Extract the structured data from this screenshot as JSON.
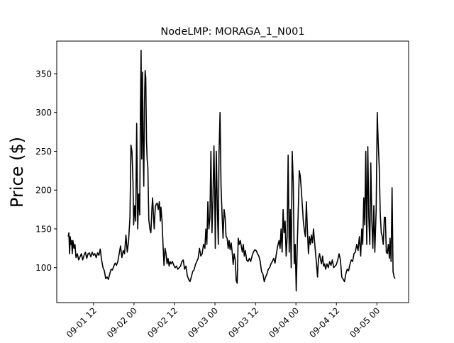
{
  "chart_data": {
    "type": "line",
    "title": "NodeLMP: MORAGA_1_N001",
    "xlabel": "",
    "ylabel": "Price ($)",
    "x_ticks": [
      {
        "label": "09-01 12",
        "t": 12
      },
      {
        "label": "09-02 00",
        "t": 24
      },
      {
        "label": "09-02 12",
        "t": 36
      },
      {
        "label": "09-03 00",
        "t": 48
      },
      {
        "label": "09-03 12",
        "t": 60
      },
      {
        "label": "09-04 00",
        "t": 72
      },
      {
        "label": "09-04 12",
        "t": 84
      },
      {
        "label": "09-05 00",
        "t": 96
      }
    ],
    "y_ticks": [
      100,
      150,
      200,
      250,
      300,
      350
    ],
    "xlim": [
      1.1,
      105.4
    ],
    "ylim": [
      55,
      392
    ],
    "grid": false,
    "line_color": "#000000",
    "series": [
      {
        "points": [
          [
            4.5,
            140
          ],
          [
            4.7,
            145
          ],
          [
            4.9,
            118
          ],
          [
            5.1,
            140
          ],
          [
            5.3,
            130
          ],
          [
            5.5,
            135
          ],
          [
            5.7,
            118
          ],
          [
            5.9,
            135
          ],
          [
            6.2,
            125
          ],
          [
            6.5,
            130
          ],
          [
            6.8,
            113
          ],
          [
            7.2,
            118
          ],
          [
            7.6,
            110
          ],
          [
            8.0,
            114
          ],
          [
            8.4,
            118
          ],
          [
            8.8,
            110
          ],
          [
            9.2,
            116
          ],
          [
            9.6,
            120
          ],
          [
            10.0,
            112
          ],
          [
            10.4,
            118
          ],
          [
            10.8,
            119
          ],
          [
            11.2,
            114
          ],
          [
            11.6,
            120
          ],
          [
            12.0,
            116
          ],
          [
            12.4,
            118
          ],
          [
            12.8,
            113
          ],
          [
            13.2,
            119
          ],
          [
            13.6,
            116
          ],
          [
            14.0,
            124
          ],
          [
            14.4,
            110
          ],
          [
            14.8,
            100
          ],
          [
            15.2,
            96
          ],
          [
            15.6,
            86
          ],
          [
            16.0,
            88
          ],
          [
            16.4,
            85
          ],
          [
            16.8,
            92
          ],
          [
            17.2,
            98
          ],
          [
            17.6,
            97
          ],
          [
            18.0,
            102
          ],
          [
            18.4,
            106
          ],
          [
            18.8,
            103
          ],
          [
            19.2,
            108
          ],
          [
            19.6,
            118
          ],
          [
            20.0,
            128
          ],
          [
            20.4,
            113
          ],
          [
            20.8,
            122
          ],
          [
            21.2,
            118
          ],
          [
            21.6,
            142
          ],
          [
            22.0,
            120
          ],
          [
            22.4,
            135
          ],
          [
            22.8,
            165
          ],
          [
            23.1,
            258
          ],
          [
            23.4,
            250
          ],
          [
            23.7,
            210
          ],
          [
            23.9,
            155
          ],
          [
            24.2,
            180
          ],
          [
            24.5,
            160
          ],
          [
            24.8,
            286
          ],
          [
            25.1,
            150
          ],
          [
            25.4,
            195
          ],
          [
            25.7,
            168
          ],
          [
            25.9,
            300
          ],
          [
            26.1,
            380
          ],
          [
            26.3,
            240
          ],
          [
            26.5,
            352
          ],
          [
            26.7,
            260
          ],
          [
            26.9,
            205
          ],
          [
            27.1,
            310
          ],
          [
            27.3,
            354
          ],
          [
            27.5,
            345
          ],
          [
            27.7,
            265
          ],
          [
            27.9,
            240
          ],
          [
            28.1,
            230
          ],
          [
            28.4,
            162
          ],
          [
            28.7,
            150
          ],
          [
            29.0,
            145
          ],
          [
            29.3,
            175
          ],
          [
            29.5,
            190
          ],
          [
            29.8,
            165
          ],
          [
            30.0,
            150
          ],
          [
            30.3,
            178
          ],
          [
            30.6,
            182
          ],
          [
            30.9,
            183
          ],
          [
            31.2,
            175
          ],
          [
            31.5,
            185
          ],
          [
            31.8,
            160
          ],
          [
            32.0,
            178
          ],
          [
            32.3,
            160
          ],
          [
            32.6,
            130
          ],
          [
            32.9,
            103
          ],
          [
            33.2,
            125
          ],
          [
            33.5,
            118
          ],
          [
            33.8,
            105
          ],
          [
            34.1,
            112
          ],
          [
            34.4,
            102
          ],
          [
            34.7,
            108
          ],
          [
            35.0,
            105
          ],
          [
            35.4,
            108
          ],
          [
            35.8,
            103
          ],
          [
            36.2,
            100
          ],
          [
            36.6,
            102
          ],
          [
            37.0,
            98
          ],
          [
            37.4,
            100
          ],
          [
            37.8,
            102
          ],
          [
            38.2,
            108
          ],
          [
            38.6,
            110
          ],
          [
            39.0,
            98
          ],
          [
            39.4,
            102
          ],
          [
            39.8,
            90
          ],
          [
            40.2,
            85
          ],
          [
            40.6,
            82
          ],
          [
            41.0,
            88
          ],
          [
            41.4,
            95
          ],
          [
            41.8,
            97
          ],
          [
            42.2,
            104
          ],
          [
            42.6,
            108
          ],
          [
            43.0,
            112
          ],
          [
            43.4,
            125
          ],
          [
            43.8,
            115
          ],
          [
            44.2,
            118
          ],
          [
            44.6,
            130
          ],
          [
            45.0,
            125
          ],
          [
            45.3,
            150
          ],
          [
            45.6,
            130
          ],
          [
            45.9,
            185
          ],
          [
            46.2,
            150
          ],
          [
            46.5,
            165
          ],
          [
            46.8,
            250
          ],
          [
            47.1,
            145
          ],
          [
            47.4,
            190
          ],
          [
            47.7,
            257
          ],
          [
            47.9,
            200
          ],
          [
            48.1,
            125
          ],
          [
            48.4,
            250
          ],
          [
            48.7,
            175
          ],
          [
            49.0,
            130
          ],
          [
            49.2,
            245
          ],
          [
            49.5,
            300
          ],
          [
            49.8,
            205
          ],
          [
            50.1,
            170
          ],
          [
            50.4,
            138
          ],
          [
            50.7,
            175
          ],
          [
            51.0,
            165
          ],
          [
            51.3,
            140
          ],
          [
            51.6,
            138
          ],
          [
            51.9,
            125
          ],
          [
            52.2,
            135
          ],
          [
            52.5,
            123
          ],
          [
            52.8,
            132
          ],
          [
            53.1,
            120
          ],
          [
            53.4,
            104
          ],
          [
            53.7,
            118
          ],
          [
            54.0,
            110
          ],
          [
            54.3,
            83
          ],
          [
            54.6,
            80
          ],
          [
            54.9,
            138
          ],
          [
            55.2,
            130
          ],
          [
            55.5,
            135
          ],
          [
            55.8,
            128
          ],
          [
            56.1,
            120
          ],
          [
            56.4,
            130
          ],
          [
            56.7,
            115
          ],
          [
            57.0,
            122
          ],
          [
            57.4,
            110
          ],
          [
            57.8,
            108
          ],
          [
            58.2,
            112
          ],
          [
            58.6,
            108
          ],
          [
            59.0,
            115
          ],
          [
            59.4,
            120
          ],
          [
            59.8,
            123
          ],
          [
            60.2,
            122
          ],
          [
            60.6,
            118
          ],
          [
            61.0,
            115
          ],
          [
            61.4,
            108
          ],
          [
            61.8,
            95
          ],
          [
            62.2,
            92
          ],
          [
            62.6,
            82
          ],
          [
            63.0,
            88
          ],
          [
            63.4,
            92
          ],
          [
            63.8,
            98
          ],
          [
            64.2,
            100
          ],
          [
            64.6,
            105
          ],
          [
            65.0,
            108
          ],
          [
            65.4,
            112
          ],
          [
            65.8,
            106
          ],
          [
            66.2,
            118
          ],
          [
            66.6,
            128
          ],
          [
            67.0,
            135
          ],
          [
            67.3,
            125
          ],
          [
            67.6,
            150
          ],
          [
            67.9,
            120
          ],
          [
            68.2,
            175
          ],
          [
            68.5,
            145
          ],
          [
            68.8,
            160
          ],
          [
            69.1,
            115
          ],
          [
            69.4,
            140
          ],
          [
            69.7,
            245
          ],
          [
            70.0,
            120
          ],
          [
            70.3,
            175
          ],
          [
            70.6,
            100
          ],
          [
            70.9,
            250
          ],
          [
            71.2,
            210
          ],
          [
            71.5,
            105
          ],
          [
            71.8,
            130
          ],
          [
            72.1,
            70
          ],
          [
            72.4,
            130
          ],
          [
            72.7,
            175
          ],
          [
            73.0,
            225
          ],
          [
            73.3,
            218
          ],
          [
            73.6,
            200
          ],
          [
            73.9,
            180
          ],
          [
            74.2,
            160
          ],
          [
            74.5,
            148
          ],
          [
            74.8,
            140
          ],
          [
            75.1,
            185
          ],
          [
            75.4,
            150
          ],
          [
            75.7,
            118
          ],
          [
            76.0,
            140
          ],
          [
            76.3,
            130
          ],
          [
            76.6,
            142
          ],
          [
            76.9,
            132
          ],
          [
            77.2,
            150
          ],
          [
            77.5,
            135
          ],
          [
            77.8,
            120
          ],
          [
            78.1,
            105
          ],
          [
            78.4,
            88
          ],
          [
            78.7,
            112
          ],
          [
            79.0,
            118
          ],
          [
            79.3,
            110
          ],
          [
            79.6,
            105
          ],
          [
            79.9,
            115
          ],
          [
            80.2,
            102
          ],
          [
            80.5,
            105
          ],
          [
            80.8,
            98
          ],
          [
            81.2,
            105
          ],
          [
            81.6,
            100
          ],
          [
            82.0,
            108
          ],
          [
            82.4,
            103
          ],
          [
            82.8,
            110
          ],
          [
            83.2,
            100
          ],
          [
            83.6,
            102
          ],
          [
            84.0,
            104
          ],
          [
            84.4,
            110
          ],
          [
            84.8,
            118
          ],
          [
            85.2,
            110
          ],
          [
            85.6,
            88
          ],
          [
            86.0,
            85
          ],
          [
            86.4,
            82
          ],
          [
            86.8,
            92
          ],
          [
            87.2,
            98
          ],
          [
            87.6,
            96
          ],
          [
            88.0,
            104
          ],
          [
            88.4,
            110
          ],
          [
            88.8,
            108
          ],
          [
            89.2,
            118
          ],
          [
            89.6,
            120
          ],
          [
            90.0,
            130
          ],
          [
            90.4,
            122
          ],
          [
            90.8,
            140
          ],
          [
            91.2,
            115
          ],
          [
            91.5,
            150
          ],
          [
            91.8,
            130
          ],
          [
            92.1,
            190
          ],
          [
            92.4,
            155
          ],
          [
            92.7,
            250
          ],
          [
            93.0,
            130
          ],
          [
            93.3,
            256
          ],
          [
            93.6,
            165
          ],
          [
            93.9,
            130
          ],
          [
            94.2,
            235
          ],
          [
            94.5,
            160
          ],
          [
            94.8,
            125
          ],
          [
            95.1,
            180
          ],
          [
            95.4,
            120
          ],
          [
            95.8,
            175
          ],
          [
            96.1,
            300
          ],
          [
            96.4,
            260
          ],
          [
            96.7,
            230
          ],
          [
            97.0,
            168
          ],
          [
            97.3,
            145
          ],
          [
            97.6,
            140
          ],
          [
            97.9,
            130
          ],
          [
            98.2,
            165
          ],
          [
            98.5,
            165
          ],
          [
            98.8,
            120
          ],
          [
            99.1,
            118
          ],
          [
            99.4,
            130
          ],
          [
            99.7,
            112
          ],
          [
            99.9,
            138
          ],
          [
            100.2,
            108
          ],
          [
            100.5,
            203
          ],
          [
            100.8,
            95
          ],
          [
            101.1,
            88
          ],
          [
            101.4,
            86
          ]
        ]
      }
    ]
  }
}
